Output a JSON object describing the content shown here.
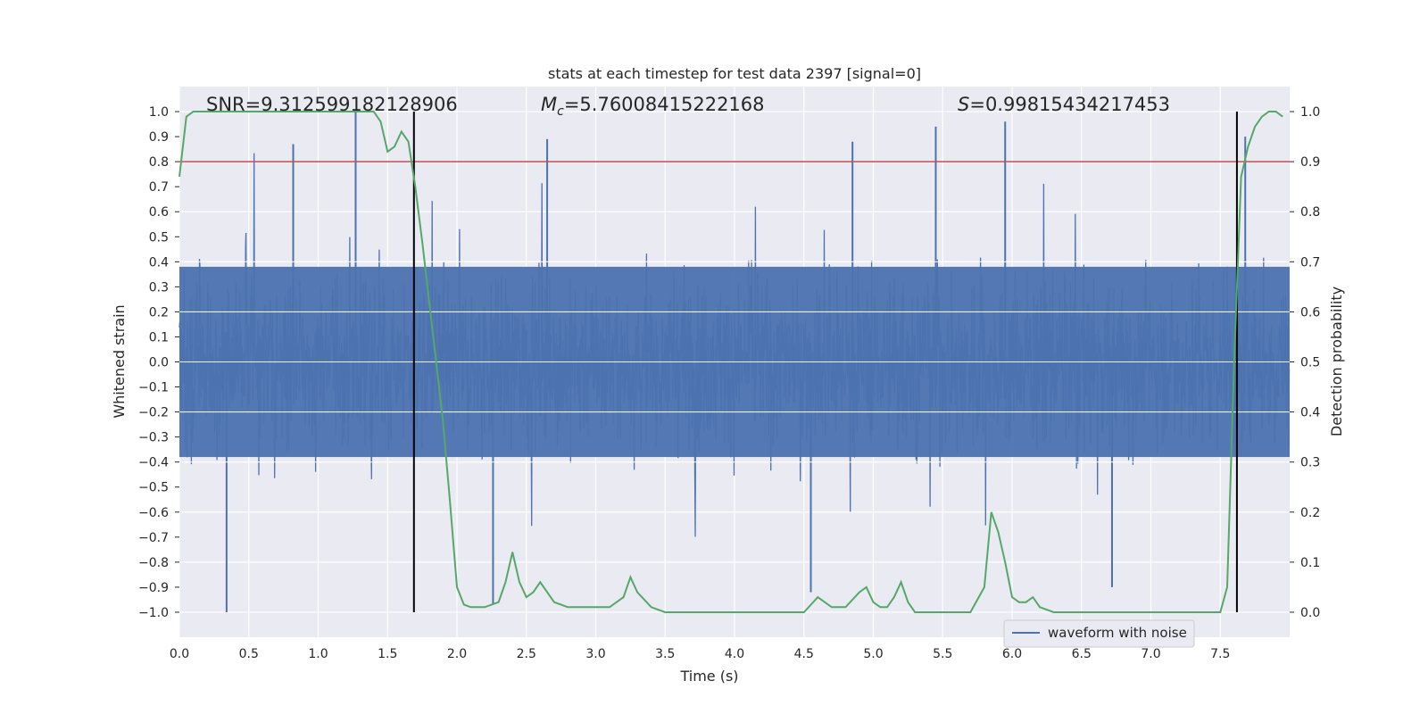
{
  "chart_data": {
    "type": "line",
    "title": "stats at each timestep for test data 2397 [signal=0]",
    "xlabel": "Time (s)",
    "ylabel": "Whitened strain",
    "y2label": "Detection probability",
    "xlim": [
      0.0,
      8.0
    ],
    "ylim": [
      -1.1,
      1.1
    ],
    "y2lim": [
      -0.05,
      1.05
    ],
    "xticks": [
      "0.0",
      "0.5",
      "1.0",
      "1.5",
      "2.0",
      "2.5",
      "3.0",
      "3.5",
      "4.0",
      "4.5",
      "5.0",
      "5.5",
      "6.0",
      "6.5",
      "7.0",
      "7.5"
    ],
    "yticks": [
      "1.0",
      "0.9",
      "0.8",
      "0.7",
      "0.6",
      "0.5",
      "0.4",
      "0.3",
      "0.2",
      "0.1",
      "0.0",
      "−0.1",
      "−0.2",
      "−0.3",
      "−0.4",
      "−0.5",
      "−0.6",
      "−0.7",
      "−0.8",
      "−0.9",
      "−1.0"
    ],
    "y2ticks": [
      "1.0",
      "0.9",
      "0.8",
      "0.7",
      "0.6",
      "0.5",
      "0.4",
      "0.3",
      "0.2",
      "0.1",
      "0.0"
    ],
    "annotations": {
      "snr": "SNR=9.312599182128906",
      "mc_prefix": "M",
      "mc_sub": "c",
      "mc_value": "=5.76008415222168",
      "s_prefix": "S",
      "s_value": "=0.99815434217453"
    },
    "legend": {
      "label": "waveform with noise",
      "placement": "lower-right"
    },
    "threshold": {
      "value": 0.9,
      "axis": "right",
      "color": "#c44e52"
    },
    "vlines": [
      1.69,
      7.62
    ],
    "colors": {
      "strain": "#4c72b0",
      "probability": "#55a868",
      "threshold": "#c44e52",
      "vline": "#000000",
      "plot_bg": "#eaeaf2",
      "grid": "#ffffff"
    },
    "strain_series": {
      "name": "waveform with noise",
      "description_values": "dense noise, bulk within about ±0.4, spikes to about ±1.0",
      "peaks": [
        {
          "x": 0.34,
          "y": -1.0
        },
        {
          "x": 1.27,
          "y": 1.0
        },
        {
          "x": 2.26,
          "y": -0.97
        },
        {
          "x": 4.55,
          "y": -0.92
        },
        {
          "x": 5.45,
          "y": 0.94
        },
        {
          "x": 5.95,
          "y": 0.96
        },
        {
          "x": 6.72,
          "y": -0.9
        },
        {
          "x": 0.82,
          "y": 0.87
        },
        {
          "x": 2.65,
          "y": 0.89
        },
        {
          "x": 4.85,
          "y": 0.88
        },
        {
          "x": 7.68,
          "y": 0.9
        }
      ]
    },
    "probability_series": {
      "name": "detection probability",
      "x": [
        0.0,
        0.05,
        0.1,
        0.2,
        0.4,
        0.6,
        0.8,
        1.0,
        1.2,
        1.4,
        1.45,
        1.5,
        1.55,
        1.6,
        1.65,
        1.7,
        1.75,
        1.8,
        1.85,
        1.9,
        1.95,
        2.0,
        2.05,
        2.1,
        2.2,
        2.3,
        2.35,
        2.4,
        2.45,
        2.5,
        2.55,
        2.6,
        2.7,
        2.8,
        2.9,
        3.0,
        3.1,
        3.2,
        3.25,
        3.3,
        3.4,
        3.5,
        3.6,
        3.8,
        4.0,
        4.2,
        4.4,
        4.5,
        4.6,
        4.7,
        4.8,
        4.9,
        4.95,
        5.0,
        5.05,
        5.1,
        5.15,
        5.2,
        5.25,
        5.3,
        5.35,
        5.4,
        5.5,
        5.6,
        5.7,
        5.8,
        5.85,
        5.9,
        5.95,
        6.0,
        6.05,
        6.1,
        6.15,
        6.2,
        6.3,
        6.5,
        6.7,
        6.9,
        7.1,
        7.3,
        7.4,
        7.5,
        7.55,
        7.6,
        7.65,
        7.7,
        7.75,
        7.8,
        7.85,
        7.9,
        7.95
      ],
      "y": [
        0.87,
        0.99,
        1.0,
        1.0,
        1.0,
        1.0,
        1.0,
        1.0,
        1.0,
        1.0,
        0.98,
        0.92,
        0.93,
        0.96,
        0.94,
        0.85,
        0.74,
        0.62,
        0.5,
        0.38,
        0.22,
        0.05,
        0.015,
        0.01,
        0.01,
        0.02,
        0.06,
        0.12,
        0.06,
        0.03,
        0.04,
        0.06,
        0.02,
        0.01,
        0.01,
        0.01,
        0.01,
        0.03,
        0.07,
        0.04,
        0.01,
        0.0,
        0.0,
        0.0,
        0.0,
        0.0,
        0.0,
        0.0,
        0.03,
        0.01,
        0.01,
        0.04,
        0.05,
        0.02,
        0.01,
        0.01,
        0.03,
        0.06,
        0.02,
        0.0,
        0.0,
        0.0,
        0.0,
        0.0,
        0.0,
        0.05,
        0.2,
        0.16,
        0.1,
        0.03,
        0.02,
        0.02,
        0.03,
        0.01,
        0.0,
        0.0,
        0.0,
        0.0,
        0.0,
        0.0,
        0.0,
        0.0,
        0.05,
        0.5,
        0.87,
        0.93,
        0.97,
        0.99,
        1.0,
        1.0,
        0.99
      ]
    }
  }
}
